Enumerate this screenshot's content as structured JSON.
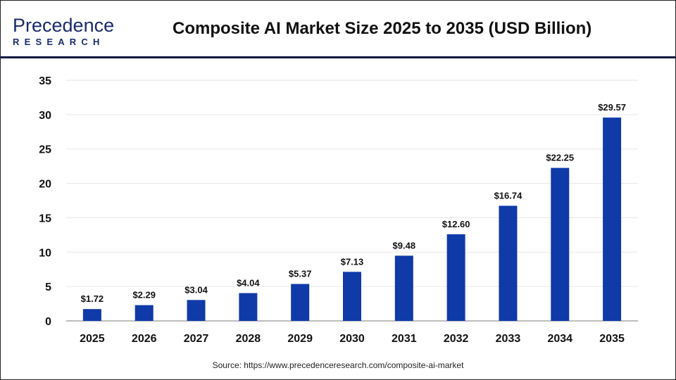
{
  "logo": {
    "line1": "Precedence",
    "line2": "RESEARCH"
  },
  "chart_data": {
    "type": "bar",
    "title": "Composite AI Market Size 2025 to 2035 (USD Billion)",
    "categories": [
      "2025",
      "2026",
      "2027",
      "2028",
      "2029",
      "2030",
      "2031",
      "2032",
      "2033",
      "2034",
      "2035"
    ],
    "values": [
      1.72,
      2.29,
      3.04,
      4.04,
      5.37,
      7.13,
      9.48,
      12.6,
      16.74,
      22.25,
      29.57
    ],
    "data_labels": [
      "$1.72",
      "$2.29",
      "$3.04",
      "$4.04",
      "$5.37",
      "$7.13",
      "$9.48",
      "$12.60",
      "$16.74",
      "$22.25",
      "$29.57"
    ],
    "yticks": [
      0,
      5,
      10,
      15,
      20,
      25,
      30,
      35
    ],
    "ylim": [
      0,
      35
    ],
    "grid": true,
    "bar_color": "#0f3aa8",
    "xlabel": "",
    "ylabel": ""
  },
  "source": "Source: https://www.precedenceresearch.com/composite-ai-market"
}
